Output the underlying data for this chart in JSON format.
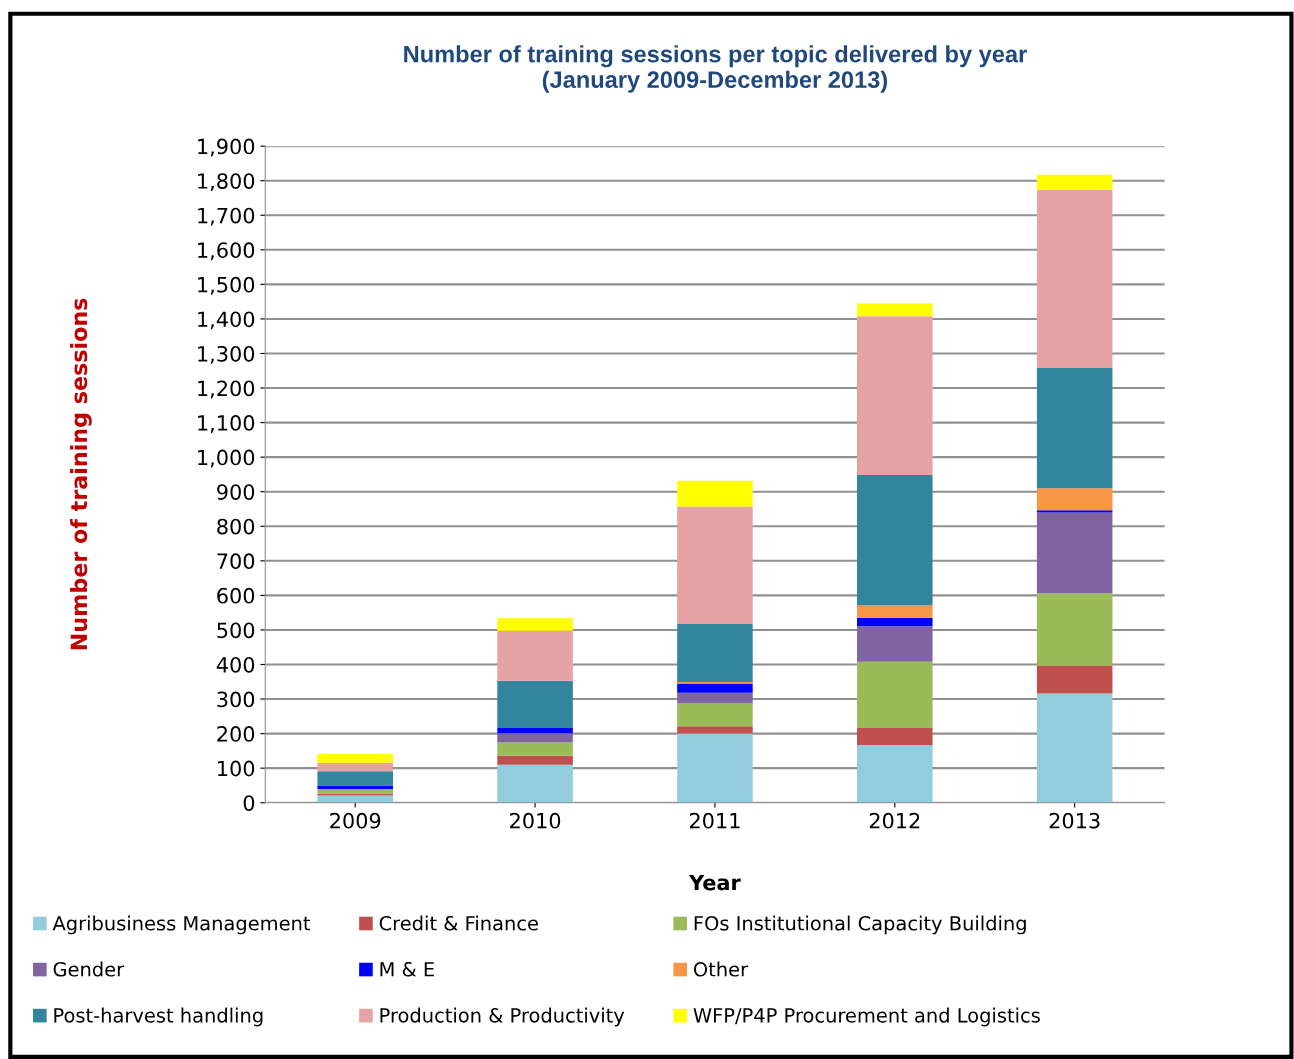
{
  "chart_data": {
    "type": "bar",
    "stacked": true,
    "title": "Number of training sessions per topic delivered by year\n(January 2009-December 2013)",
    "xlabel": "Year",
    "ylabel": "Number of training sessions",
    "categories": [
      "2009",
      "2010",
      "2011",
      "2012",
      "2013"
    ],
    "series": [
      {
        "name": "Agribusiness Management",
        "color": "#93cddd",
        "values": [
          21,
          110,
          200,
          167,
          316
        ]
      },
      {
        "name": "Credit & Finance",
        "color": "#c0504d",
        "values": [
          6,
          26,
          21,
          49,
          81
        ]
      },
      {
        "name": "FOs Institutional Capacity Building",
        "color": "#9bbb59",
        "values": [
          13,
          38,
          66,
          192,
          209
        ]
      },
      {
        "name": "Gender",
        "color": "#8064a2",
        "values": [
          0,
          27,
          31,
          103,
          234
        ]
      },
      {
        "name": "M & E",
        "color": "#0000ff",
        "values": [
          10,
          15,
          27,
          24,
          6
        ]
      },
      {
        "name": "Other",
        "color": "#f79646",
        "values": [
          0,
          0,
          4,
          37,
          64
        ]
      },
      {
        "name": "Post-harvest handling",
        "color": "#31859c",
        "values": [
          41,
          137,
          168,
          376,
          348
        ]
      },
      {
        "name": "Production & Productivity",
        "color": "#e6a3a3",
        "values": [
          25,
          145,
          340,
          460,
          515
        ]
      },
      {
        "name": "WFP/P4P Procurement and Logistics",
        "color": "#ffff00",
        "values": [
          25,
          36,
          75,
          37,
          44
        ]
      }
    ],
    "ylim": [
      0,
      1900
    ],
    "yticks": [
      0,
      {
        "value": 100,
        "label": "100"
      },
      {
        "value": 200,
        "label": "200"
      },
      {
        "value": 300,
        "label": "300"
      },
      {
        "value": 400,
        "label": "400"
      },
      {
        "value": 500,
        "label": "500"
      },
      {
        "value": 600,
        "label": "600"
      },
      {
        "value": 700,
        "label": "700"
      },
      {
        "value": 800,
        "label": "800"
      },
      {
        "value": 900,
        "label": "900"
      },
      {
        "value": 1000,
        "label": "1,000"
      },
      {
        "value": 1100,
        "label": "1,100"
      },
      {
        "value": 1200,
        "label": "1,200"
      },
      {
        "value": 1300,
        "label": "1,300"
      },
      {
        "value": 1400,
        "label": "1,400"
      },
      {
        "value": 1500,
        "label": "1,500"
      },
      {
        "value": 1600,
        "label": "1,600"
      },
      {
        "value": 1700,
        "label": "1,700"
      },
      {
        "value": 1800,
        "label": "1,800"
      },
      {
        "value": 1900,
        "label": "1,900"
      }
    ],
    "grid": "y",
    "legend": "bottom"
  }
}
